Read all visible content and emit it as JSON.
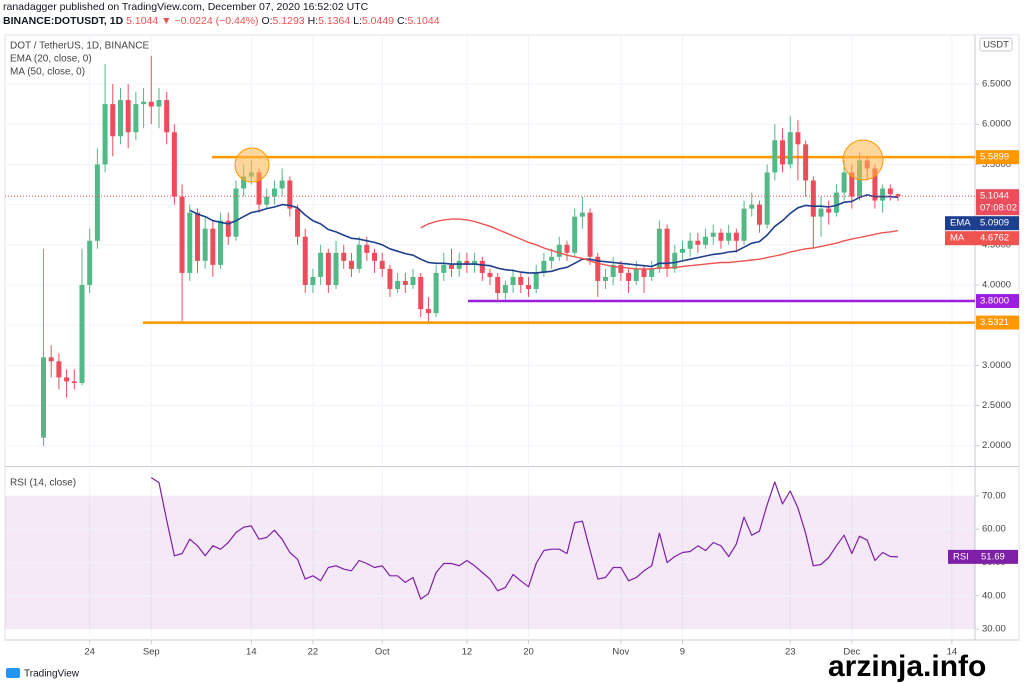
{
  "header": {
    "publisher": "ranadagger published on TradingView.com, December 07, 2020 16:52:02 UTC",
    "symbol": "BINANCE:DOTUSDT, 1D",
    "last": "5.1044",
    "change": "▼ −0.0224 (−0.44%)",
    "ohlc": [
      {
        "label": "O:",
        "value": "5.1293"
      },
      {
        "label": "H:",
        "value": "5.1364"
      },
      {
        "label": "L:",
        "value": "5.0449"
      },
      {
        "label": "C:",
        "value": "5.1044"
      }
    ]
  },
  "footer": {
    "brand": "TradingView",
    "watermark": "arzinja.info"
  },
  "chart_data": [
    {
      "type": "candlestick",
      "title": "DOT / TetherUS, 1D, BINANCE",
      "currency": "USDT",
      "up_color": "#53b987",
      "down_color": "#eb4d5c",
      "x": [
        "2020-08-18",
        "2020-08-19",
        "2020-08-20",
        "2020-08-21",
        "2020-08-22",
        "2020-08-23",
        "2020-08-24",
        "2020-08-25",
        "2020-08-26",
        "2020-08-27",
        "2020-08-28",
        "2020-08-29",
        "2020-08-30",
        "2020-08-31",
        "2020-09-01",
        "2020-09-02",
        "2020-09-03",
        "2020-09-04",
        "2020-09-05",
        "2020-09-06",
        "2020-09-07",
        "2020-09-08",
        "2020-09-09",
        "2020-09-10",
        "2020-09-11",
        "2020-09-12",
        "2020-09-13",
        "2020-09-14",
        "2020-09-15",
        "2020-09-16",
        "2020-09-17",
        "2020-09-18",
        "2020-09-19",
        "2020-09-20",
        "2020-09-21",
        "2020-09-22",
        "2020-09-23",
        "2020-09-24",
        "2020-09-25",
        "2020-09-26",
        "2020-09-27",
        "2020-09-28",
        "2020-09-29",
        "2020-09-30",
        "2020-10-01",
        "2020-10-02",
        "2020-10-03",
        "2020-10-04",
        "2020-10-05",
        "2020-10-06",
        "2020-10-07",
        "2020-10-08",
        "2020-10-09",
        "2020-10-10",
        "2020-10-11",
        "2020-10-12",
        "2020-10-13",
        "2020-10-14",
        "2020-10-15",
        "2020-10-16",
        "2020-10-17",
        "2020-10-18",
        "2020-10-19",
        "2020-10-20",
        "2020-10-21",
        "2020-10-22",
        "2020-10-23",
        "2020-10-24",
        "2020-10-25",
        "2020-10-26",
        "2020-10-27",
        "2020-10-28",
        "2020-10-29",
        "2020-10-30",
        "2020-10-31",
        "2020-11-01",
        "2020-11-02",
        "2020-11-03",
        "2020-11-04",
        "2020-11-05",
        "2020-11-06",
        "2020-11-07",
        "2020-11-08",
        "2020-11-09",
        "2020-11-10",
        "2020-11-11",
        "2020-11-12",
        "2020-11-13",
        "2020-11-14",
        "2020-11-15",
        "2020-11-16",
        "2020-11-17",
        "2020-11-18",
        "2020-11-19",
        "2020-11-20",
        "2020-11-21",
        "2020-11-22",
        "2020-11-23",
        "2020-11-24",
        "2020-11-25",
        "2020-11-26",
        "2020-11-27",
        "2020-11-28",
        "2020-11-29",
        "2020-11-30",
        "2020-12-01",
        "2020-12-02",
        "2020-12-03",
        "2020-12-04",
        "2020-12-05",
        "2020-12-06",
        "2020-12-07"
      ],
      "open": [
        2.1,
        3.1,
        3.05,
        2.85,
        2.8,
        2.78,
        4.0,
        4.55,
        5.5,
        6.25,
        5.85,
        6.3,
        5.9,
        6.25,
        6.28,
        6.22,
        6.3,
        5.9,
        5.1,
        4.15,
        4.9,
        4.3,
        4.7,
        4.25,
        4.8,
        4.6,
        5.2,
        5.35,
        5.4,
        5.0,
        5.1,
        5.2,
        5.3,
        4.95,
        4.6,
        4.0,
        4.1,
        4.4,
        4.0,
        4.4,
        4.3,
        4.2,
        4.5,
        4.4,
        4.3,
        4.2,
        3.95,
        4.05,
        4.0,
        4.1,
        3.7,
        3.65,
        4.15,
        4.25,
        4.2,
        4.3,
        4.25,
        4.3,
        4.15,
        4.1,
        3.9,
        4.0,
        4.1,
        4.0,
        3.95,
        4.15,
        4.3,
        4.35,
        4.5,
        4.4,
        4.85,
        4.9,
        4.35,
        4.05,
        4.1,
        4.25,
        4.15,
        4.05,
        4.2,
        4.1,
        4.2,
        4.7,
        4.2,
        4.4,
        4.45,
        4.55,
        4.5,
        4.6,
        4.65,
        4.55,
        4.65,
        4.55,
        4.95,
        5.0,
        4.75,
        5.4,
        5.8,
        5.5,
        5.9,
        5.75,
        5.3,
        4.85,
        4.95,
        4.9,
        5.15,
        5.4,
        5.1,
        5.55,
        5.45,
        5.05,
        5.2,
        5.1293
      ],
      "high": [
        4.45,
        3.25,
        3.15,
        2.95,
        2.95,
        4.45,
        4.7,
        5.7,
        6.75,
        6.5,
        6.45,
        6.5,
        6.4,
        6.45,
        6.85,
        6.45,
        6.4,
        6.0,
        5.25,
        5.0,
        4.95,
        4.85,
        4.8,
        4.9,
        4.9,
        5.3,
        5.5,
        5.55,
        5.45,
        5.2,
        5.3,
        5.45,
        5.35,
        5.0,
        4.7,
        4.2,
        4.5,
        4.45,
        4.55,
        4.5,
        4.4,
        4.6,
        4.6,
        4.45,
        4.4,
        4.25,
        4.15,
        4.15,
        4.2,
        4.15,
        3.85,
        4.25,
        4.4,
        4.45,
        4.4,
        4.4,
        4.4,
        4.35,
        4.2,
        4.15,
        4.05,
        4.2,
        4.15,
        4.1,
        4.25,
        4.4,
        4.45,
        4.6,
        4.55,
        4.95,
        5.1,
        4.95,
        4.4,
        4.2,
        4.35,
        4.3,
        4.2,
        4.3,
        4.25,
        4.3,
        4.8,
        4.75,
        4.5,
        4.55,
        4.65,
        4.65,
        4.7,
        4.75,
        4.7,
        4.75,
        4.7,
        5.05,
        5.15,
        5.05,
        5.5,
        6.0,
        5.95,
        6.1,
        6.05,
        5.8,
        5.35,
        5.1,
        5.05,
        5.25,
        5.55,
        5.5,
        5.65,
        5.6,
        5.5,
        5.25,
        5.25,
        5.1364
      ],
      "low": [
        2.0,
        2.85,
        2.7,
        2.6,
        2.7,
        2.75,
        3.9,
        4.45,
        5.4,
        5.6,
        5.75,
        5.7,
        5.8,
        5.95,
        6.0,
        5.95,
        5.75,
        5.0,
        3.55,
        4.05,
        4.15,
        4.2,
        4.1,
        4.2,
        4.5,
        4.55,
        5.1,
        5.25,
        4.9,
        4.95,
        5.0,
        5.1,
        4.85,
        4.5,
        3.9,
        3.9,
        4.0,
        3.9,
        3.95,
        4.2,
        4.1,
        4.15,
        4.3,
        4.15,
        4.1,
        3.85,
        3.9,
        3.9,
        3.95,
        3.6,
        3.55,
        3.6,
        4.05,
        4.1,
        4.1,
        4.15,
        4.15,
        4.05,
        4.0,
        3.8,
        3.82,
        3.9,
        3.9,
        3.85,
        3.9,
        4.1,
        4.2,
        4.3,
        4.3,
        4.35,
        4.7,
        4.25,
        3.85,
        3.95,
        4.0,
        4.05,
        3.9,
        4.0,
        3.9,
        4.05,
        4.15,
        4.1,
        4.15,
        4.3,
        4.35,
        4.4,
        4.45,
        4.5,
        4.45,
        4.5,
        4.4,
        4.5,
        4.85,
        4.65,
        4.7,
        5.3,
        5.4,
        5.45,
        5.3,
        5.1,
        4.45,
        4.6,
        4.75,
        4.85,
        5.05,
        4.95,
        5.05,
        5.3,
        4.95,
        4.9,
        5.05,
        5.0449
      ],
      "close": [
        3.1,
        3.05,
        2.85,
        2.8,
        2.78,
        4.0,
        4.55,
        5.5,
        6.25,
        5.85,
        6.3,
        5.9,
        6.25,
        6.28,
        6.22,
        6.3,
        5.9,
        5.1,
        4.15,
        4.9,
        4.3,
        4.7,
        4.25,
        4.8,
        4.6,
        5.2,
        5.35,
        5.4,
        5.0,
        5.1,
        5.2,
        5.3,
        4.95,
        4.6,
        4.0,
        4.1,
        4.4,
        4.0,
        4.4,
        4.3,
        4.2,
        4.5,
        4.4,
        4.3,
        4.2,
        3.95,
        4.05,
        4.0,
        4.1,
        3.7,
        3.65,
        4.15,
        4.25,
        4.2,
        4.3,
        4.25,
        4.3,
        4.15,
        4.1,
        3.9,
        4.0,
        4.1,
        4.0,
        3.95,
        4.15,
        4.3,
        4.35,
        4.5,
        4.4,
        4.85,
        4.9,
        4.35,
        4.05,
        4.1,
        4.25,
        4.15,
        4.05,
        4.2,
        4.1,
        4.2,
        4.7,
        4.2,
        4.4,
        4.45,
        4.55,
        4.5,
        4.6,
        4.65,
        4.55,
        4.65,
        4.55,
        4.95,
        5.0,
        4.75,
        5.4,
        5.8,
        5.5,
        5.9,
        5.75,
        5.3,
        4.85,
        4.95,
        4.9,
        5.15,
        5.4,
        5.1,
        5.55,
        5.45,
        5.05,
        5.2,
        5.1293,
        5.1044
      ],
      "last_label": "5.1044",
      "countdown": "07:08:02",
      "series": [
        {
          "name": "EMA",
          "legend": "EMA (20, close, 0)",
          "color": "#1e3f8f",
          "last_label": "5.0909",
          "values": [
            null,
            null,
            null,
            null,
            null,
            null,
            null,
            null,
            null,
            null,
            null,
            null,
            null,
            null,
            null,
            null,
            null,
            null,
            null,
            4.93,
            4.88,
            4.85,
            4.8,
            4.78,
            4.76,
            4.8,
            4.85,
            4.9,
            4.92,
            4.95,
            4.97,
            5.0,
            4.99,
            4.96,
            4.87,
            4.8,
            4.76,
            4.69,
            4.66,
            4.62,
            4.58,
            4.57,
            4.55,
            4.53,
            4.5,
            4.45,
            4.42,
            4.39,
            4.37,
            4.32,
            4.28,
            4.27,
            4.27,
            4.26,
            4.26,
            4.26,
            4.26,
            4.25,
            4.24,
            4.21,
            4.19,
            4.18,
            4.16,
            4.15,
            4.15,
            4.16,
            4.17,
            4.2,
            4.22,
            4.27,
            4.32,
            4.32,
            4.3,
            4.29,
            4.28,
            4.27,
            4.26,
            4.25,
            4.24,
            4.23,
            4.27,
            4.27,
            4.28,
            4.3,
            4.32,
            4.34,
            4.36,
            4.38,
            4.39,
            4.41,
            4.42,
            4.47,
            4.52,
            4.54,
            4.62,
            4.73,
            4.8,
            4.89,
            4.96,
            4.99,
            4.98,
            4.98,
            4.97,
            4.99,
            5.03,
            5.04,
            5.09,
            5.12,
            5.1,
            5.1,
            5.1,
            5.0909
          ]
        },
        {
          "name": "MA",
          "legend": "MA (50, close, 0)",
          "color": "#ef5350",
          "last_label": "4.6762",
          "values": [
            null,
            null,
            null,
            null,
            null,
            null,
            null,
            null,
            null,
            null,
            null,
            null,
            null,
            null,
            null,
            null,
            null,
            null,
            null,
            null,
            null,
            null,
            null,
            null,
            null,
            null,
            null,
            null,
            null,
            null,
            null,
            null,
            null,
            null,
            null,
            null,
            null,
            null,
            null,
            null,
            null,
            null,
            null,
            null,
            null,
            null,
            null,
            null,
            null,
            4.71,
            4.76,
            4.79,
            4.81,
            4.82,
            4.82,
            4.81,
            4.79,
            4.76,
            4.73,
            4.69,
            4.65,
            4.61,
            4.57,
            4.53,
            4.5,
            4.46,
            4.43,
            4.4,
            4.37,
            4.35,
            4.33,
            4.3,
            4.27,
            4.25,
            4.23,
            4.22,
            4.21,
            4.2,
            4.2,
            4.2,
            4.21,
            4.21,
            4.22,
            4.23,
            4.24,
            4.25,
            4.26,
            4.27,
            4.28,
            4.28,
            4.29,
            4.3,
            4.31,
            4.32,
            4.34,
            4.36,
            4.38,
            4.41,
            4.43,
            4.45,
            4.46,
            4.48,
            4.5,
            4.52,
            4.55,
            4.57,
            4.59,
            4.61,
            4.63,
            4.65,
            4.66,
            4.6762
          ]
        }
      ],
      "levels": [
        {
          "value": 5.5899,
          "label": "5.5899",
          "color": "#ff9800"
        },
        {
          "value": 3.8,
          "label": "3.8000",
          "color": "#9c1fe0"
        },
        {
          "value": 3.5321,
          "label": "3.5321",
          "color": "#ff9800"
        }
      ],
      "xlim": [
        "2020-08-13",
        "2020-12-17"
      ],
      "xticks": [
        {
          "value": "2020-08-24",
          "label": "24"
        },
        {
          "value": "2020-09-01",
          "label": "Sep"
        },
        {
          "value": "2020-09-14",
          "label": "14"
        },
        {
          "value": "2020-09-22",
          "label": "22"
        },
        {
          "value": "2020-10-01",
          "label": "Oct"
        },
        {
          "value": "2020-10-12",
          "label": "12"
        },
        {
          "value": "2020-10-20",
          "label": "20"
        },
        {
          "value": "2020-11-01",
          "label": "Nov"
        },
        {
          "value": "2020-11-09",
          "label": "9"
        },
        {
          "value": "2020-11-23",
          "label": "23"
        },
        {
          "value": "2020-12-01",
          "label": "Dec"
        },
        {
          "value": "2020-12-14",
          "label": "14"
        }
      ],
      "ylim": [
        1.76,
        7.11
      ],
      "yticks": [
        {
          "value": 2,
          "label": "2.0000"
        },
        {
          "value": 2.5,
          "label": "2.5000"
        },
        {
          "value": 3,
          "label": "3.0000"
        },
        {
          "value": 3.5,
          "label": "3.5000"
        },
        {
          "value": 4,
          "label": "4.0000"
        },
        {
          "value": 4.5,
          "label": "4.5000"
        },
        {
          "value": 5,
          "label": "5.0000"
        },
        {
          "value": 5.5,
          "label": "5.5000"
        },
        {
          "value": 6,
          "label": "6.0000"
        },
        {
          "value": 6.5,
          "label": "6.5000"
        }
      ],
      "grid": true
    },
    {
      "type": "line",
      "title": "RSI (14, close)",
      "series": [
        {
          "name": "RSI",
          "color": "#7e1fa8",
          "last_label": "51.69",
          "values": [
            null,
            null,
            null,
            null,
            null,
            null,
            null,
            null,
            null,
            null,
            null,
            null,
            null,
            null,
            75.5,
            74,
            62.7,
            52,
            52.7,
            57,
            55,
            52,
            55,
            54,
            56,
            59,
            60.6,
            61,
            57,
            57.5,
            59.7,
            57,
            53,
            51,
            45,
            46,
            44.5,
            48.5,
            49,
            48,
            47.5,
            50.6,
            49.7,
            48.5,
            49,
            46,
            46,
            44,
            45.5,
            39,
            40.6,
            47,
            49.7,
            49.7,
            49,
            50.6,
            49,
            47,
            45,
            41.5,
            42.5,
            46.4,
            44.5,
            42.7,
            49.7,
            53.6,
            54,
            54,
            52.7,
            62,
            62.4,
            53.6,
            45,
            45.5,
            48.5,
            48.5,
            44.5,
            45.5,
            47.5,
            49,
            58.8,
            50,
            51.8,
            53,
            53.3,
            55,
            53.6,
            56,
            55,
            51.8,
            55.5,
            63.6,
            58.2,
            59.4,
            67.3,
            74.2,
            67.6,
            71.5,
            66.4,
            58.8,
            49,
            49.4,
            51.5,
            55,
            58.2,
            52.7,
            57.9,
            56.7,
            50.6,
            53,
            51.8,
            51.69
          ]
        }
      ],
      "band": [
        30,
        70
      ],
      "band_color": "#9c27b0",
      "ylim": [
        26.7,
        78.4
      ],
      "yticks": [
        {
          "value": 30,
          "label": "30.00"
        },
        {
          "value": 40,
          "label": "40.00"
        },
        {
          "value": 50,
          "label": "50.00"
        },
        {
          "value": 60,
          "label": "60.00"
        },
        {
          "value": 70,
          "label": "70.00"
        }
      ],
      "grid": true
    }
  ]
}
